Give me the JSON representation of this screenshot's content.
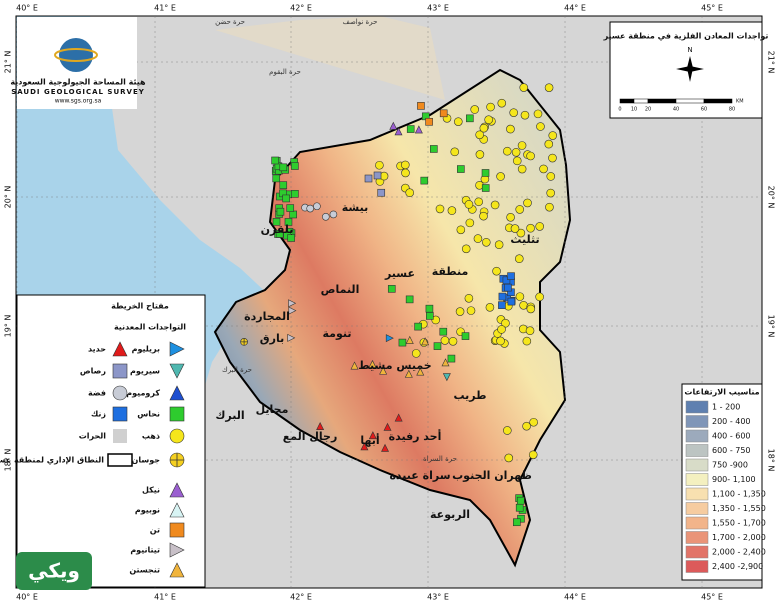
{
  "coordinates": {
    "top": [
      "40° E",
      "41° E",
      "42° E",
      "43° E",
      "44° E",
      "45° E"
    ],
    "bottom": [
      "40° E",
      "41° E",
      "42° E",
      "43° E",
      "44° E",
      "45° E"
    ],
    "left": [
      "21° N",
      "20° N",
      "19° N",
      "18° N"
    ],
    "right": [
      "21° N",
      "20° N",
      "19° N",
      "18° N"
    ]
  },
  "logo": {
    "name_ar": "هيئة المساحة الجيولوجية السعودية",
    "name_en": "SAUDI GEOLOGICAL SURVEY",
    "url": "www.sgs.org.sa"
  },
  "title_box": {
    "title": "تواجدات المعادن الفلزية في منطقة عسير",
    "north": "N",
    "scale": [
      "0",
      "10",
      "20",
      "40",
      "60",
      "80"
    ],
    "unit": "KM"
  },
  "legend": {
    "title": "مفتاح الخريطة",
    "subtitle": "التواجدات المعدنية",
    "items": [
      "حديد",
      "بريليوم",
      "رصاص",
      "سيريوم",
      "فضة",
      "كروميوم",
      "زنك",
      "نحاس",
      "الحرات",
      "ذهب",
      "النطاق الإداري لمنطقة عسير",
      "جوسان",
      "نيكل",
      "نوبيوم",
      "تن",
      "تيتانيوم",
      "تنجستن"
    ]
  },
  "elevation_legend": {
    "title": "مناسيب الارتفاعات",
    "classes": [
      "1 - 200",
      "200 - 400",
      "400 - 600",
      "600 - 750",
      "750 -900",
      "900- 1,100",
      "1,100 - 1,350",
      "1,350 - 1,550",
      "1,550 - 1,700",
      "1,700 - 2,000",
      "2,000 - 2,400",
      "2,400 -2,900"
    ]
  },
  "places": [
    "حرة حضن",
    "حرة نواصف",
    "حرة البقوم",
    "بيشة",
    "تثليث",
    "منطقة",
    "عسير",
    "النماص",
    "تنومة",
    "المجاردة",
    "بارق",
    "خميس مشيط",
    "طريب",
    "حرة البرك",
    "محايل",
    "البرك",
    "رجال المع",
    "أبها",
    "أحد رفيدة",
    "حرة السراة",
    "سراة عبيدة",
    "ظهران الجنوب",
    "الربوعة",
    "بلقرن"
  ],
  "watermark": "ويكي"
}
